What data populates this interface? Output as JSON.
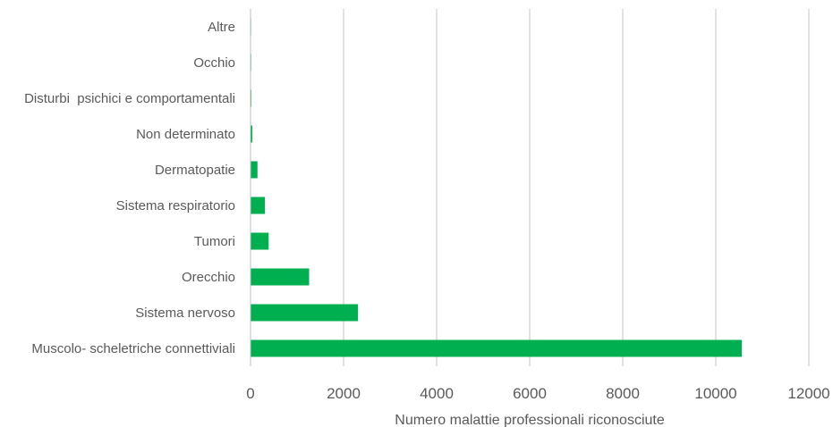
{
  "chart_data": {
    "type": "bar",
    "orientation": "horizontal",
    "categories": [
      "Altre",
      "Occhio",
      "Disturbi  psichici e comportamentali",
      "Non determinato",
      "Dermatopatie",
      "Sistema respiratorio",
      "Tumori",
      "Orecchio",
      "Sistema nervoso",
      "Muscolo- scheletriche connettiviali"
    ],
    "values": [
      3,
      5,
      8,
      30,
      140,
      300,
      380,
      1250,
      2300,
      10550
    ],
    "title": "",
    "xlabel": "Numero malattie professionali riconosciute",
    "ylabel": "",
    "xlim": [
      0,
      12000
    ],
    "xticks": [
      0,
      2000,
      4000,
      6000,
      8000,
      10000,
      12000
    ],
    "grid": true,
    "bar_color": "#00b050"
  }
}
